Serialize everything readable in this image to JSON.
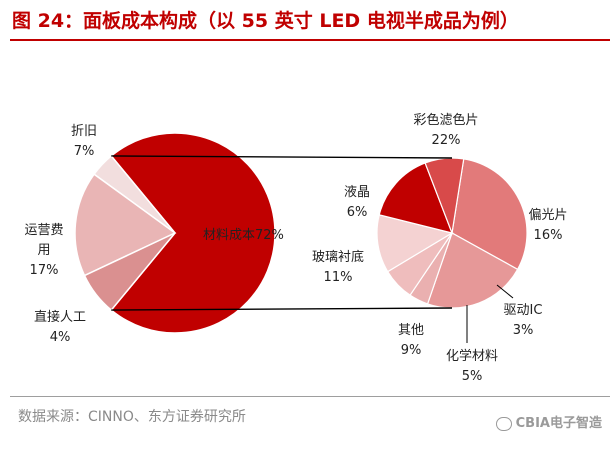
{
  "title": "图 24：面板成本构成（以 55 英寸 LED 电视半成品为例）",
  "source": "数据来源：CINNO、东方证券研究所",
  "watermark": "CBIA电子智造",
  "colors": {
    "accent": "#c00000"
  },
  "chart_data": [
    {
      "type": "pie",
      "title": "",
      "slices": [
        {
          "label": "材料成本",
          "value": 72,
          "display": "72%",
          "color": "#c00000"
        },
        {
          "label": "直接人工",
          "value": 4,
          "display": "4%",
          "color": "#f2dede"
        },
        {
          "label": "运营费用",
          "value": 17,
          "display": "17%",
          "color": "#e9b5b5"
        },
        {
          "label": "折旧",
          "value": 7,
          "display": "7%",
          "color": "#da9090"
        }
      ]
    },
    {
      "type": "pie",
      "title": "",
      "slices": [
        {
          "label": "彩色滤色片",
          "value": 22,
          "display": "22%",
          "color": "#e27a7a"
        },
        {
          "label": "偏光片",
          "value": 16,
          "display": "16%",
          "color": "#e69898"
        },
        {
          "label": "驱动IC",
          "value": 3,
          "display": "3%",
          "color": "#eab0b0"
        },
        {
          "label": "化学材料",
          "value": 5,
          "display": "5%",
          "color": "#efbdbd"
        },
        {
          "label": "其他",
          "value": 9,
          "display": "9%",
          "color": "#f4d2d2"
        },
        {
          "label": "玻璃衬底",
          "value": 11,
          "display": "11%",
          "color": "#c00000"
        },
        {
          "label": "液晶",
          "value": 6,
          "display": "6%",
          "color": "#d84a4a"
        }
      ]
    }
  ]
}
